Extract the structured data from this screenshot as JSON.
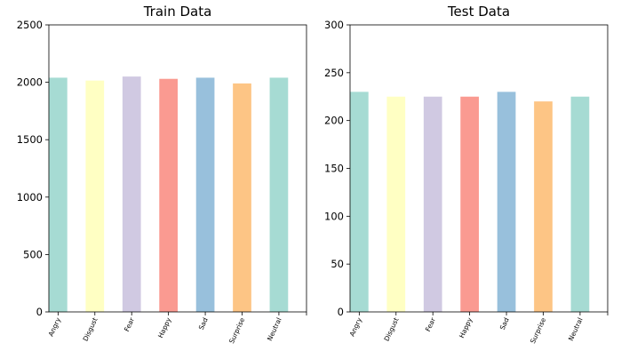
{
  "chart_data": [
    {
      "type": "bar",
      "title": "Train Data",
      "xlabel": "",
      "ylabel": "",
      "categories": [
        "Angry",
        "Disgust",
        "Fear",
        "Happy",
        "Sad",
        "Surprise",
        "Neutral"
      ],
      "values": [
        2040,
        2015,
        2050,
        2030,
        2040,
        1990,
        2040
      ],
      "ylim": [
        0,
        2500
      ],
      "yticks": [
        "0",
        "500",
        "1000",
        "1500",
        "2000",
        "2500"
      ],
      "grid": false,
      "colors": [
        "#a6dbd3",
        "#ffffc3",
        "#d0c9e2",
        "#fa9a91",
        "#98c0dc",
        "#fdc585",
        "#a6dbd3"
      ]
    },
    {
      "type": "bar",
      "title": "Test Data",
      "xlabel": "",
      "ylabel": "",
      "categories": [
        "Angry",
        "Disgust",
        "Fear",
        "Happy",
        "Sad",
        "Surprise",
        "Neutral"
      ],
      "values": [
        230,
        225,
        225,
        225,
        230,
        220,
        225
      ],
      "ylim": [
        0,
        300
      ],
      "yticks": [
        "0",
        "50",
        "100",
        "150",
        "200",
        "250",
        "300"
      ],
      "grid": false,
      "colors": [
        "#a6dbd3",
        "#ffffc3",
        "#d0c9e2",
        "#fa9a91",
        "#98c0dc",
        "#fdc585",
        "#a6dbd3"
      ]
    }
  ]
}
